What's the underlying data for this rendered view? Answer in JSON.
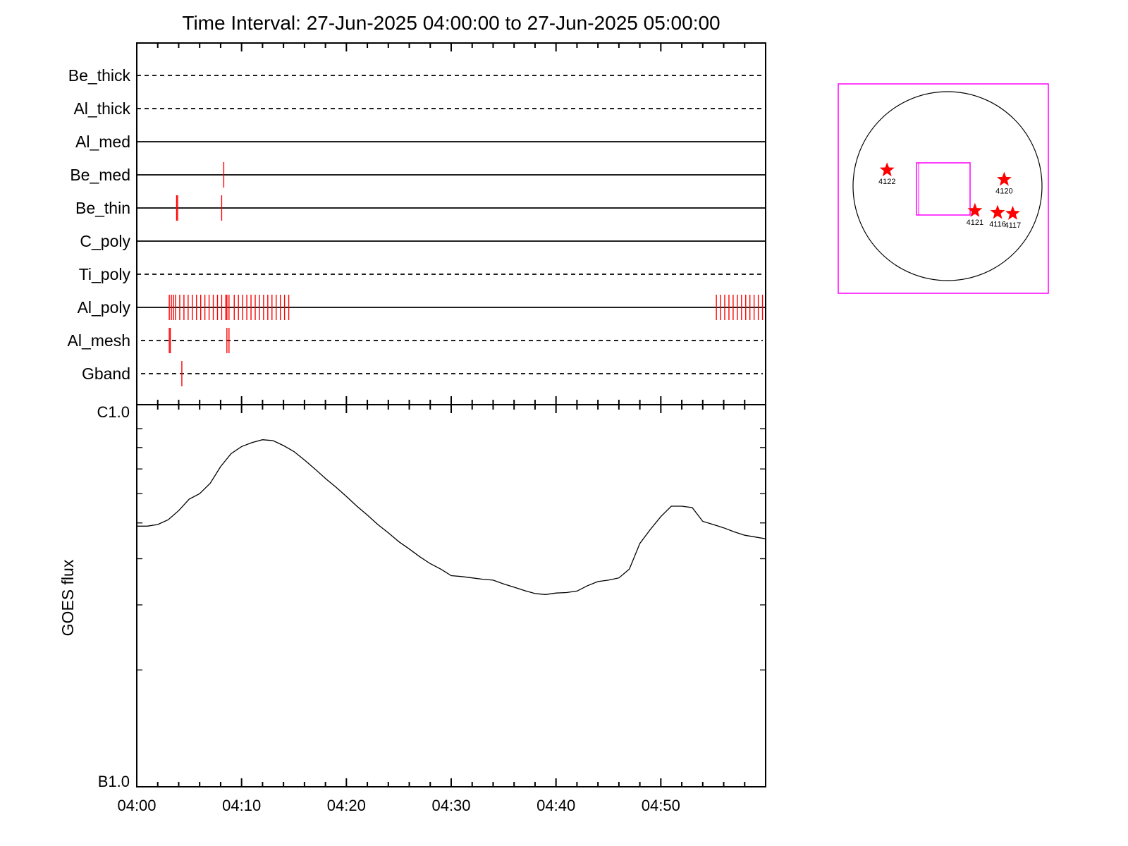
{
  "title": "Time Interval: 27-Jun-2025 04:00:00 to 27-Jun-2025 05:00:00",
  "colors": {
    "event": "#ff0000",
    "frame": "#000000",
    "fov": "#ff00ff",
    "star": "#ff0000"
  },
  "chart_data": [
    {
      "type": "scatter",
      "description_kind": "event-timeline",
      "x_unit": "minutes after 04:00",
      "xlim": [
        0,
        60
      ],
      "rows": [
        {
          "name": "Be_thick",
          "line": "dashed",
          "events": []
        },
        {
          "name": "Al_thick",
          "line": "dashed",
          "events": []
        },
        {
          "name": "Al_med",
          "line": "solid",
          "events": []
        },
        {
          "name": "Be_med",
          "line": "solid",
          "events": [
            8.3
          ]
        },
        {
          "name": "Be_thin",
          "line": "solid",
          "events": [
            3.8,
            3.9,
            8.1
          ]
        },
        {
          "name": "C_poly",
          "line": "solid",
          "events": []
        },
        {
          "name": "Ti_poly",
          "line": "dashed",
          "events": []
        },
        {
          "name": "Al_poly",
          "line": "solid",
          "events": [
            3.1,
            3.3,
            3.5,
            3.7,
            4.1,
            4.5,
            4.9,
            5.3,
            5.7,
            6.1,
            6.5,
            6.9,
            7.3,
            7.7,
            8.1,
            8.5,
            8.6,
            8.8,
            9.3,
            9.7,
            10.1,
            10.5,
            10.9,
            11.3,
            11.7,
            12.1,
            12.5,
            12.9,
            13.3,
            13.7,
            14.1,
            14.5,
            55.3,
            55.7,
            56.1,
            56.5,
            56.9,
            57.3,
            57.7,
            58.1,
            58.5,
            58.9,
            59.3,
            59.7
          ]
        },
        {
          "name": "Al_mesh",
          "line": "dashed",
          "events": [
            3.1,
            3.2,
            8.6,
            8.8
          ]
        },
        {
          "name": "Gband",
          "line": "dashed",
          "events": [
            4.3
          ]
        }
      ]
    },
    {
      "type": "line",
      "ylabel": "GOES flux",
      "y_ticklabels": [
        "C1.0",
        "B1.0"
      ],
      "x_ticklabels": [
        "04:00",
        "04:10",
        "04:20",
        "04:30",
        "04:40",
        "04:50"
      ],
      "xlim": [
        0,
        60
      ],
      "ylim_log10": [
        -7,
        -6
      ],
      "series": [
        {
          "x": [
            0,
            1,
            2,
            3,
            4,
            5,
            6,
            7,
            8,
            9,
            10,
            11,
            12,
            13,
            14,
            15,
            16,
            17,
            18,
            19,
            20,
            21,
            22,
            23,
            24,
            25,
            26,
            27,
            28,
            29,
            30,
            31,
            32,
            33,
            34,
            35,
            36,
            37,
            38,
            39,
            40,
            41,
            42,
            43,
            44,
            45,
            46,
            47,
            48,
            49,
            50,
            51,
            52,
            53,
            54,
            55,
            56,
            57,
            58,
            59,
            60
          ],
          "y": [
            4.9e-07,
            4.9e-07,
            4.95e-07,
            5.1e-07,
            5.4e-07,
            5.8e-07,
            6e-07,
            6.4e-07,
            7.1e-07,
            7.7e-07,
            8.05e-07,
            8.25e-07,
            8.4e-07,
            8.35e-07,
            8.1e-07,
            7.8e-07,
            7.4e-07,
            7e-07,
            6.6e-07,
            6.25e-07,
            5.9e-07,
            5.55e-07,
            5.25e-07,
            4.95e-07,
            4.7e-07,
            4.45e-07,
            4.25e-07,
            4.05e-07,
            3.88e-07,
            3.75e-07,
            3.6e-07,
            3.58e-07,
            3.55e-07,
            3.52e-07,
            3.5e-07,
            3.42e-07,
            3.35e-07,
            3.28e-07,
            3.22e-07,
            3.2e-07,
            3.23e-07,
            3.24e-07,
            3.27e-07,
            3.38e-07,
            3.47e-07,
            3.5e-07,
            3.55e-07,
            3.75e-07,
            4.4e-07,
            4.8e-07,
            5.2e-07,
            5.55e-07,
            5.55e-07,
            5.5e-07,
            5.05e-07,
            4.95e-07,
            4.85e-07,
            4.73e-07,
            4.63e-07,
            4.58e-07,
            4.53e-07
          ]
        }
      ]
    }
  ],
  "inset": {
    "description_kind": "solar-disk-map",
    "regions": [
      {
        "label": "4122",
        "disk_x": -0.64,
        "disk_y": 0.17
      },
      {
        "label": "4120",
        "disk_x": 0.6,
        "disk_y": 0.07
      },
      {
        "label": "4121",
        "disk_x": 0.29,
        "disk_y": -0.26
      },
      {
        "label": "4116",
        "disk_x": 0.53,
        "disk_y": -0.28
      },
      {
        "label": "4117",
        "disk_x": 0.69,
        "disk_y": -0.29
      }
    ]
  }
}
